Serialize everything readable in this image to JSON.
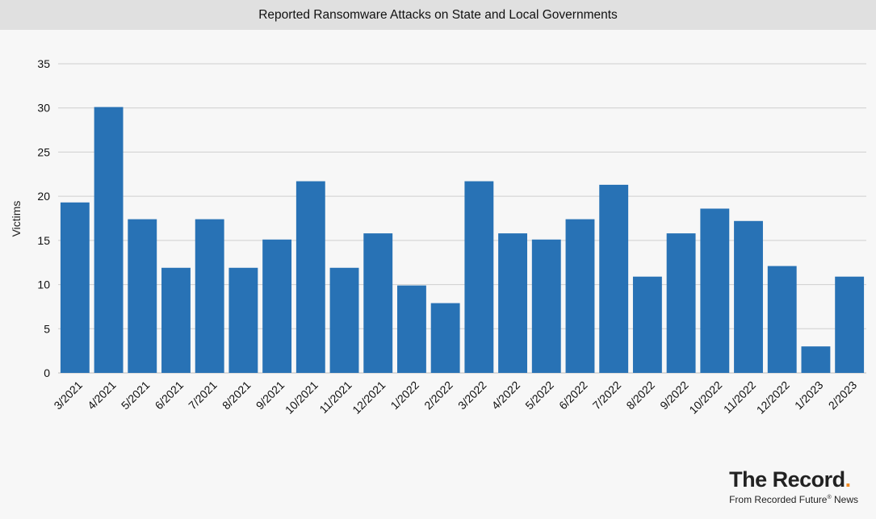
{
  "chart_data": {
    "type": "bar",
    "title": "Reported Ransomware Attacks on State and Local Governments",
    "ylabel": "Victims",
    "xlabel": "",
    "ylim": [
      0,
      35
    ],
    "yticks": [
      0,
      5,
      10,
      15,
      20,
      25,
      30,
      35
    ],
    "grid": true,
    "bar_color": "#2872b5",
    "categories": [
      "3/2021",
      "4/2021",
      "5/2021",
      "6/2021",
      "7/2021",
      "8/2021",
      "9/2021",
      "10/2021",
      "11/2021",
      "12/2021",
      "1/2022",
      "2/2022",
      "3/2022",
      "4/2022",
      "5/2022",
      "6/2022",
      "7/2022",
      "8/2022",
      "9/2022",
      "10/2022",
      "11/2022",
      "12/2022",
      "1/2023",
      "2/2023"
    ],
    "values": [
      19.3,
      30.1,
      17.4,
      11.9,
      17.4,
      11.9,
      15.1,
      21.7,
      11.9,
      15.8,
      9.9,
      7.9,
      21.7,
      15.8,
      15.1,
      17.4,
      21.3,
      10.9,
      15.8,
      18.6,
      17.2,
      12.1,
      3.0,
      10.9
    ]
  },
  "logo": {
    "name": "The Record",
    "dot": ".",
    "sub_prefix": "From Recorded Future",
    "sub_mark": "®",
    "sub_suffix": " News"
  }
}
